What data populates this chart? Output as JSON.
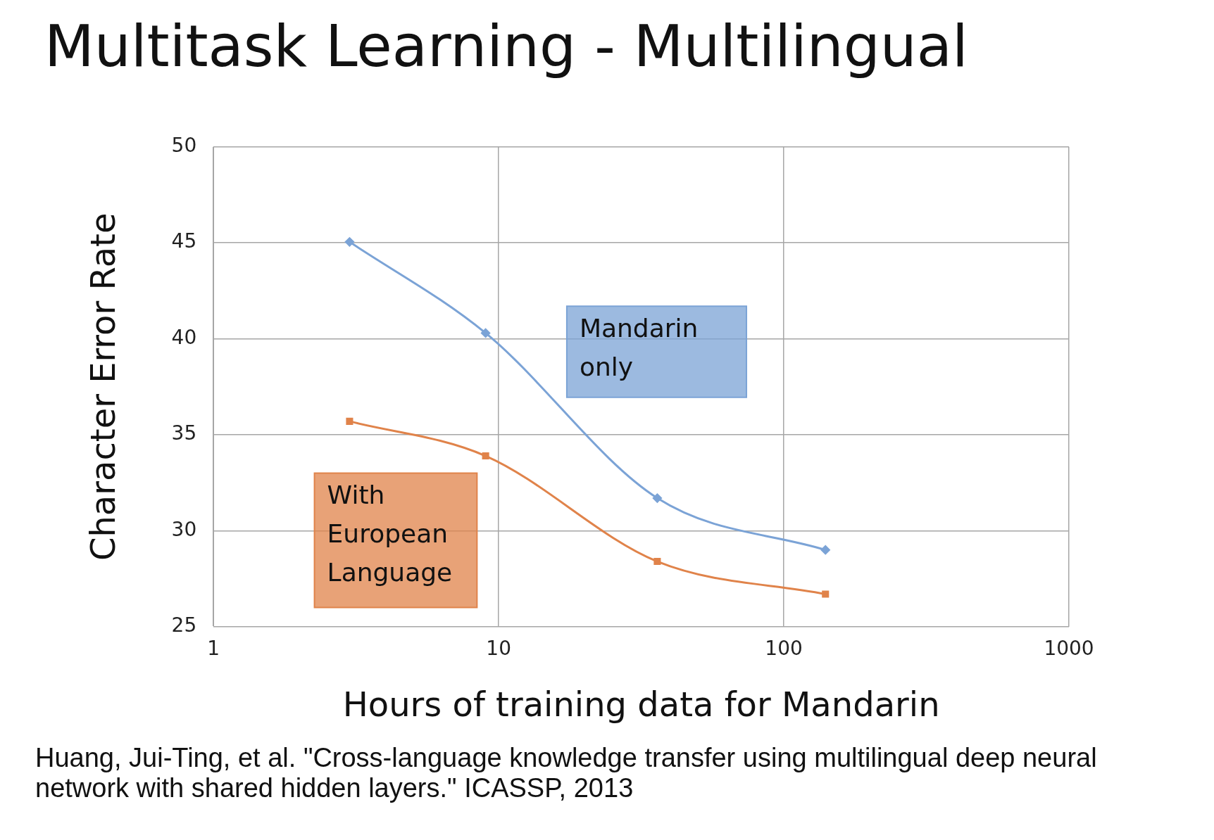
{
  "chart_data": {
    "type": "line",
    "title": "Multitask Learning - Multilingual",
    "xlabel": "Hours of training data for Mandarin",
    "ylabel": "Character Error Rate",
    "log": "x",
    "xlim": [
      1,
      1000
    ],
    "xticks": [
      1,
      10,
      100,
      1000
    ],
    "ylim": [
      25,
      50
    ],
    "yticks": [
      25,
      30,
      35,
      40,
      45,
      50
    ],
    "grid": true,
    "legend": false,
    "series": [
      {
        "name": "Mandarin only",
        "color": "#7ba3d6",
        "marker": "diamond",
        "x": [
          3,
          9,
          36,
          140
        ],
        "values": [
          45.05,
          40.3,
          31.7,
          29.0
        ]
      },
      {
        "name": "With European Language",
        "color": "#e0834a",
        "marker": "square",
        "x": [
          3,
          9,
          36,
          140
        ],
        "values": [
          35.7,
          33.9,
          28.4,
          26.7
        ]
      }
    ],
    "annotations": [
      "Huang, Jui-Ting, et al. \"Cross-language knowledge transfer using multilingual deep neural network with shared hidden layers.\" ICASSP, 2013"
    ]
  }
}
